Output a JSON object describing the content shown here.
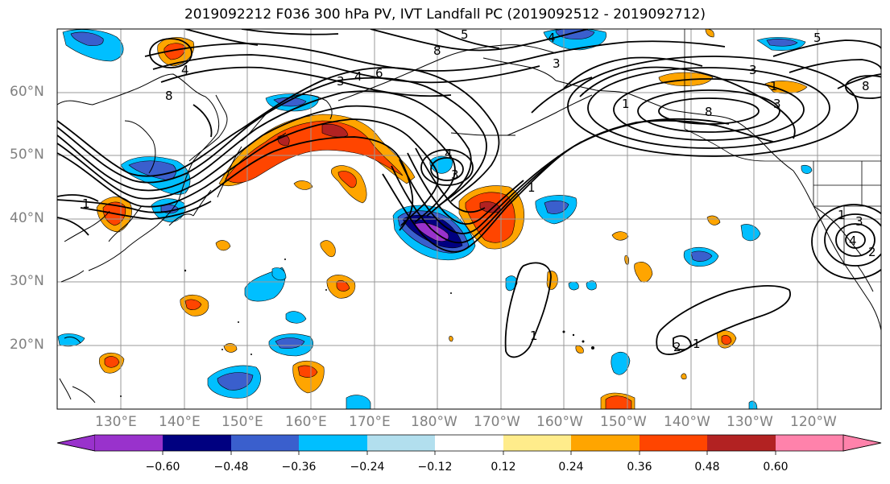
{
  "title": "2019092212 F036 300 hPa PV, IVT Landfall PC (2019092512 - 2019092712)",
  "lat_labels": [
    "60°N",
    "50°N",
    "40°N",
    "30°N",
    "20°N"
  ],
  "lon_labels": [
    "130°E",
    "140°E",
    "150°E",
    "160°E",
    "170°E",
    "180°W",
    "170°W",
    "160°W",
    "150°W",
    "140°W",
    "130°W",
    "120°W"
  ],
  "colorbar": {
    "ticks": [
      "−0.60",
      "−0.48",
      "−0.36",
      "−0.24",
      "−0.12",
      "0.12",
      "0.24",
      "0.36",
      "0.48",
      "0.60"
    ],
    "colors": [
      "#9932cc",
      "#000080",
      "#3a5fcd",
      "#00bfff",
      "#b2dfee",
      "#ffffff",
      "#ffec8b",
      "#ffa500",
      "#ff4500",
      "#b22222",
      "#ff82ab"
    ]
  },
  "contour_labels": [
    "1",
    "2",
    "3",
    "4",
    "5",
    "6",
    "8"
  ]
}
